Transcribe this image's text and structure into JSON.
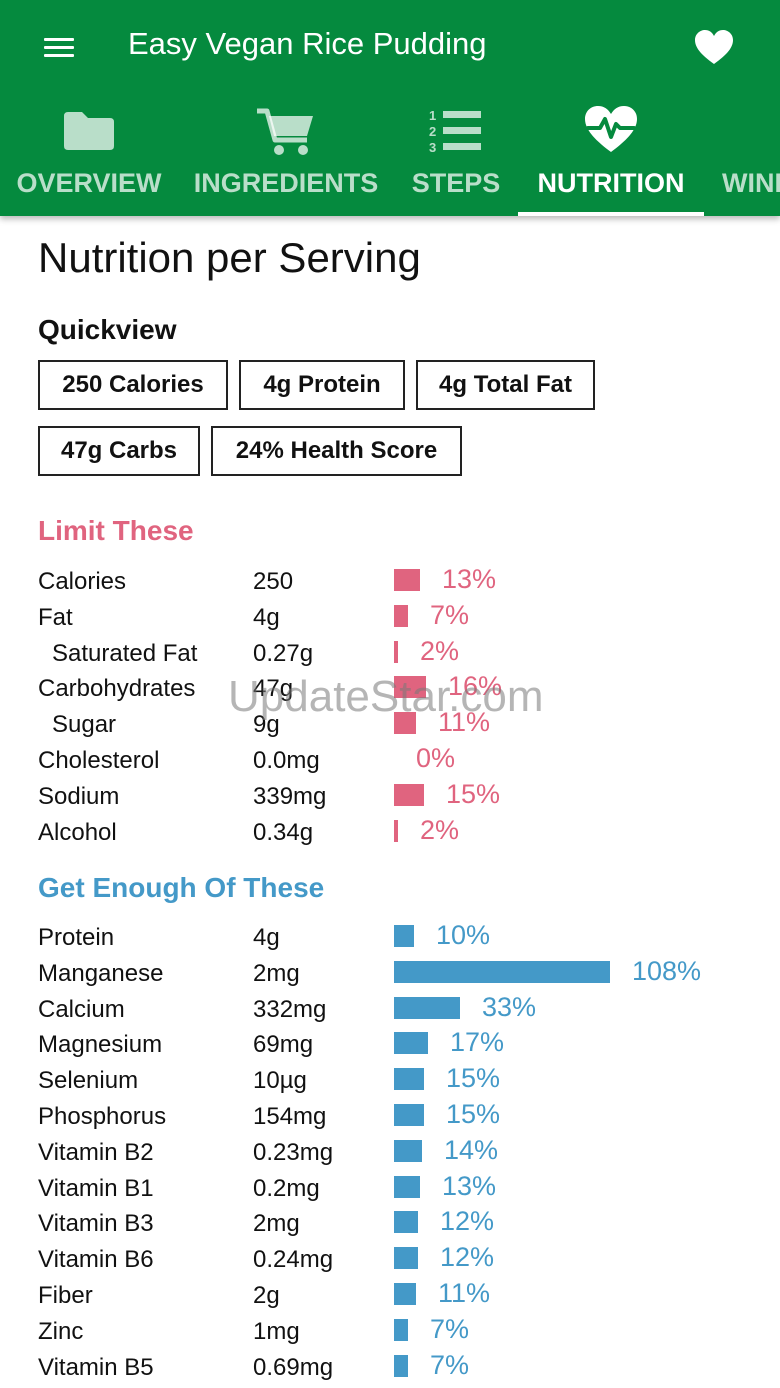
{
  "header": {
    "title": "Easy Vegan Rice Pudding",
    "menu_icon": "menu-icon",
    "favorite_icon": "heart-icon"
  },
  "tabs": [
    {
      "label": "OVERVIEW",
      "icon": "folder-icon",
      "active": false
    },
    {
      "label": "INGREDIENTS",
      "icon": "cart-icon",
      "active": false
    },
    {
      "label": "STEPS",
      "icon": "numbered-list-icon",
      "active": false
    },
    {
      "label": "NUTRITION",
      "icon": "heartbeat-icon",
      "active": true
    },
    {
      "label": "WINE",
      "icon": "",
      "active": false
    }
  ],
  "main": {
    "heading": "Nutrition per Serving",
    "quickview_label": "Quickview",
    "chips": [
      "250 Calories",
      "4g Protein",
      "4g Total Fat",
      "47g Carbs",
      "24% Health Score"
    ]
  },
  "limit": {
    "title": "Limit These",
    "color": "#e0647f",
    "rows": [
      {
        "name": "Calories",
        "value": "250",
        "percent": "13%",
        "pct": 13,
        "sub": false
      },
      {
        "name": "Fat",
        "value": "4g",
        "percent": "7%",
        "pct": 7,
        "sub": false
      },
      {
        "name": "Saturated Fat",
        "value": "0.27g",
        "percent": "2%",
        "pct": 2,
        "sub": true
      },
      {
        "name": "Carbohydrates",
        "value": "47g",
        "percent": "16%",
        "pct": 16,
        "sub": false
      },
      {
        "name": "Sugar",
        "value": "9g",
        "percent": "11%",
        "pct": 11,
        "sub": true
      },
      {
        "name": "Cholesterol",
        "value": "0.0mg",
        "percent": "0%",
        "pct": 0,
        "sub": false
      },
      {
        "name": "Sodium",
        "value": "339mg",
        "percent": "15%",
        "pct": 15,
        "sub": false
      },
      {
        "name": "Alcohol",
        "value": "0.34g",
        "percent": "2%",
        "pct": 2,
        "sub": false
      }
    ]
  },
  "enough": {
    "title": "Get Enough Of These",
    "color": "#4499c8",
    "rows": [
      {
        "name": "Protein",
        "value": "4g",
        "percent": "10%",
        "pct": 10
      },
      {
        "name": "Manganese",
        "value": "2mg",
        "percent": "108%",
        "pct": 108
      },
      {
        "name": "Calcium",
        "value": "332mg",
        "percent": "33%",
        "pct": 33
      },
      {
        "name": "Magnesium",
        "value": "69mg",
        "percent": "17%",
        "pct": 17
      },
      {
        "name": "Selenium",
        "value": "10µg",
        "percent": "15%",
        "pct": 15
      },
      {
        "name": "Phosphorus",
        "value": "154mg",
        "percent": "15%",
        "pct": 15
      },
      {
        "name": "Vitamin B2",
        "value": "0.23mg",
        "percent": "14%",
        "pct": 14
      },
      {
        "name": "Vitamin B1",
        "value": "0.2mg",
        "percent": "13%",
        "pct": 13
      },
      {
        "name": "Vitamin B3",
        "value": "2mg",
        "percent": "12%",
        "pct": 12
      },
      {
        "name": "Vitamin B6",
        "value": "0.24mg",
        "percent": "12%",
        "pct": 12
      },
      {
        "name": "Fiber",
        "value": "2g",
        "percent": "11%",
        "pct": 11
      },
      {
        "name": "Zinc",
        "value": "1mg",
        "percent": "7%",
        "pct": 7
      },
      {
        "name": "Vitamin B5",
        "value": "0.69mg",
        "percent": "7%",
        "pct": 7
      }
    ]
  },
  "watermark": "UpdateStar.com"
}
